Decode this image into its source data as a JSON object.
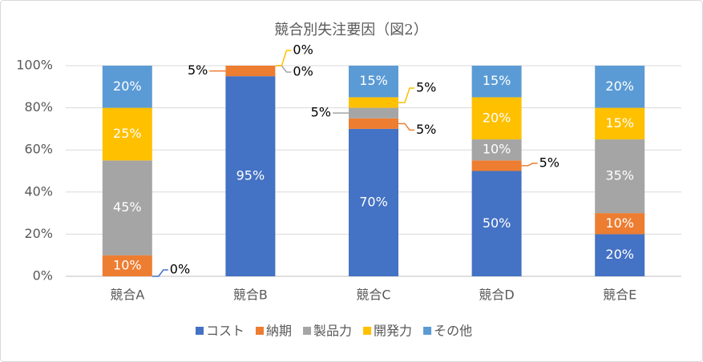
{
  "chart_data": {
    "type": "stacked_bar",
    "title": "競合別失注要因（図2）",
    "categories": [
      "競合A",
      "競合B",
      "競合C",
      "競合D",
      "競合E"
    ],
    "series": [
      {
        "name": "コスト",
        "color": "#4472c4",
        "values": [
          0,
          95,
          70,
          50,
          20
        ],
        "value_labels": [
          "0%",
          "95%",
          "70%",
          "50%",
          "20%"
        ]
      },
      {
        "name": "納期",
        "color": "#ed7d31",
        "values": [
          10,
          5,
          5,
          5,
          10
        ],
        "value_labels": [
          "10%",
          "5%",
          "5%",
          "5%",
          "10%"
        ]
      },
      {
        "name": "製品力",
        "color": "#a5a5a5",
        "values": [
          45,
          0,
          5,
          10,
          35
        ],
        "value_labels": [
          "45%",
          "0%",
          "5%",
          "10%",
          "35%"
        ]
      },
      {
        "name": "開発力",
        "color": "#ffc000",
        "values": [
          25,
          0,
          5,
          20,
          15
        ],
        "value_labels": [
          "25%",
          "0%",
          "5%",
          "20%",
          "15%"
        ]
      },
      {
        "name": "その他",
        "color": "#5b9bd5",
        "values": [
          20,
          0,
          15,
          15,
          20
        ],
        "value_labels": [
          "20%",
          null,
          "15%",
          "15%",
          "20%"
        ]
      }
    ],
    "ylim": [
      0,
      100
    ],
    "yticks": [
      {
        "value": 0,
        "label": "0%"
      },
      {
        "value": 20,
        "label": "20%"
      },
      {
        "value": 40,
        "label": "40%"
      },
      {
        "value": 60,
        "label": "60%"
      },
      {
        "value": 80,
        "label": "80%"
      },
      {
        "value": 100,
        "label": "100%"
      }
    ],
    "grid": true,
    "legend": "bottom"
  }
}
